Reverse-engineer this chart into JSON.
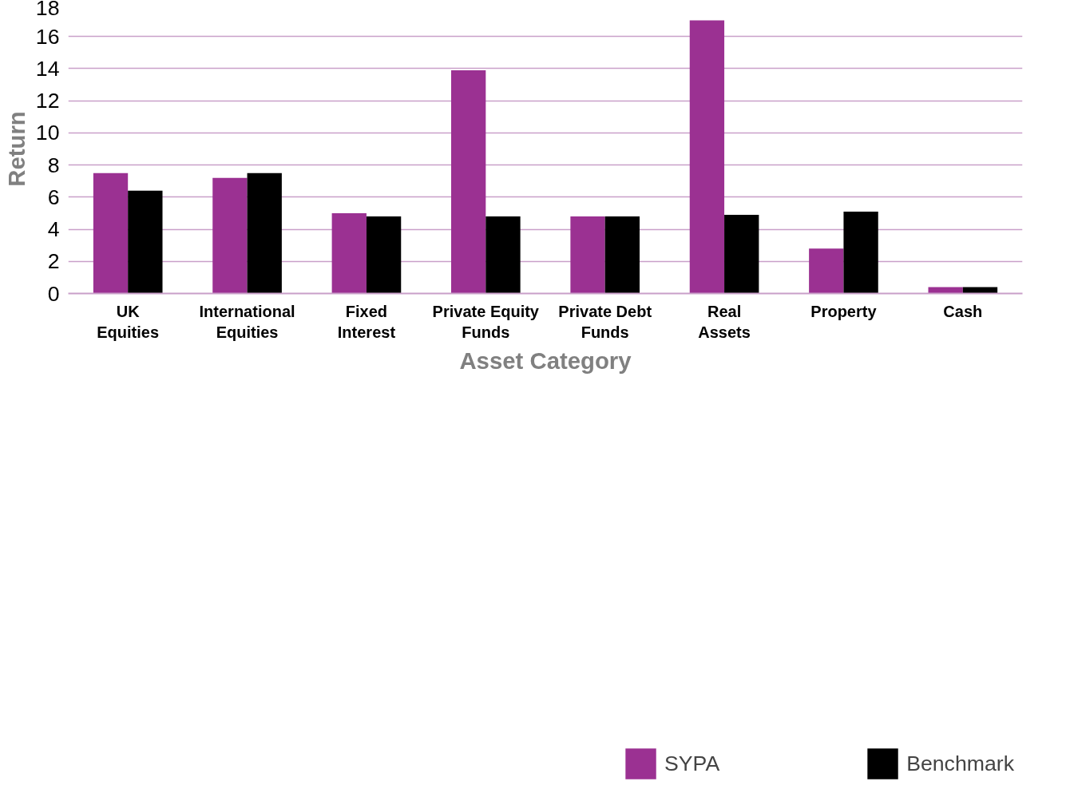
{
  "chart_data": {
    "type": "bar",
    "xlabel": "Asset Category",
    "ylabel": "Return",
    "categories": [
      "UK Equities",
      "International Equities",
      "Fixed Interest",
      "Private Equity Funds",
      "Private Debt Funds",
      "Real Assets",
      "Property",
      "Cash"
    ],
    "series": [
      {
        "name": "SYPA",
        "color": "#9b3192",
        "values": [
          7.5,
          7.2,
          5.0,
          13.9,
          4.8,
          17.0,
          2.8,
          0.4
        ]
      },
      {
        "name": "Benchmark",
        "color": "#000000",
        "values": [
          6.4,
          7.5,
          4.8,
          4.8,
          4.8,
          4.9,
          5.1,
          0.4
        ]
      }
    ],
    "ylim": [
      0,
      18
    ],
    "yticks": [
      0,
      2,
      4,
      6,
      8,
      10,
      12,
      14,
      16,
      18
    ],
    "grid": "y",
    "legend": "bottom"
  }
}
